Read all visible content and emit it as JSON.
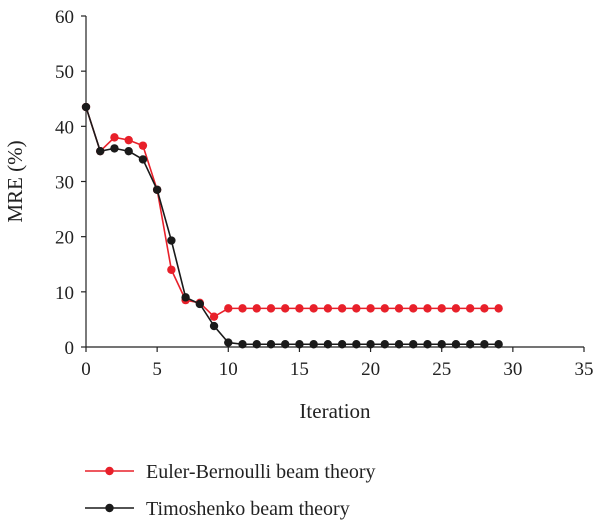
{
  "chart_data": {
    "type": "line",
    "xlabel": "Iteration",
    "ylabel": "MRE (%)",
    "xlim": [
      0,
      35
    ],
    "ylim": [
      0,
      60
    ],
    "x_ticks": [
      "0",
      "5",
      "10",
      "15",
      "20",
      "25",
      "30",
      "35"
    ],
    "y_ticks": [
      "0",
      "10",
      "20",
      "30",
      "40",
      "50",
      "60"
    ],
    "legend_position": "bottom",
    "series": [
      {
        "name": "Euler-Bernoulli beam theory",
        "color": "#e8202a",
        "x": [
          0,
          1,
          2,
          3,
          4,
          5,
          6,
          7,
          8,
          9,
          10,
          11,
          12,
          13,
          14,
          15,
          16,
          17,
          18,
          19,
          20,
          21,
          22,
          23,
          24,
          25,
          26,
          27,
          28,
          29
        ],
        "y": [
          43.5,
          35.5,
          38.0,
          37.5,
          36.5,
          28.5,
          14.0,
          8.5,
          8.0,
          5.5,
          7.0,
          7.0,
          7.0,
          7.0,
          7.0,
          7.0,
          7.0,
          7.0,
          7.0,
          7.0,
          7.0,
          7.0,
          7.0,
          7.0,
          7.0,
          7.0,
          7.0,
          7.0,
          7.0,
          7.0
        ]
      },
      {
        "name": "Timoshenko beam theory",
        "color": "#1a1a1a",
        "x": [
          0,
          1,
          2,
          3,
          4,
          5,
          6,
          7,
          8,
          9,
          10,
          11,
          12,
          13,
          14,
          15,
          16,
          17,
          18,
          19,
          20,
          21,
          22,
          23,
          24,
          25,
          26,
          27,
          28,
          29
        ],
        "y": [
          43.5,
          35.5,
          36.0,
          35.5,
          34.0,
          28.5,
          19.3,
          9.0,
          7.8,
          3.8,
          0.8,
          0.5,
          0.5,
          0.5,
          0.5,
          0.5,
          0.5,
          0.5,
          0.5,
          0.5,
          0.5,
          0.5,
          0.5,
          0.5,
          0.5,
          0.5,
          0.5,
          0.5,
          0.5,
          0.5
        ]
      }
    ]
  }
}
